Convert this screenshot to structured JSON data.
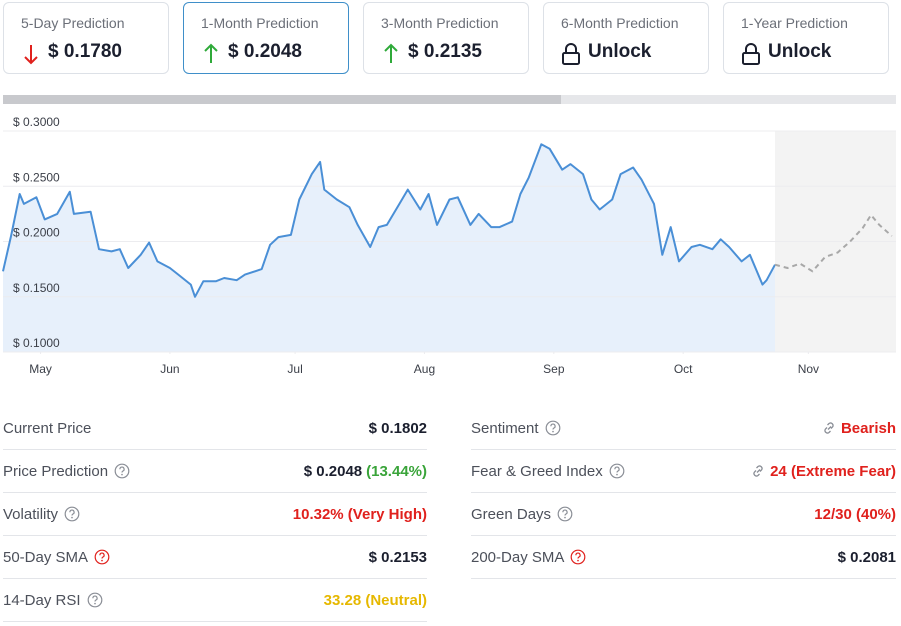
{
  "cards": [
    {
      "label": "5-Day Prediction",
      "value": "$ 0.1780",
      "icon": "down"
    },
    {
      "label": "1-Month Prediction",
      "value": "$ 0.2048",
      "icon": "up",
      "selected": true
    },
    {
      "label": "3-Month Prediction",
      "value": "$ 0.2135",
      "icon": "up"
    },
    {
      "label": "6-Month Prediction",
      "value": "Unlock",
      "icon": "lock"
    },
    {
      "label": "1-Year Prediction",
      "value": "Unlock",
      "icon": "lock"
    }
  ],
  "chart_data": {
    "type": "line",
    "xlim": [
      0,
      214
    ],
    "xticks": [
      {
        "value": 9,
        "label": "May"
      },
      {
        "value": 40,
        "label": "Jun"
      },
      {
        "value": 70,
        "label": "Jul"
      },
      {
        "value": 101,
        "label": "Aug"
      },
      {
        "value": 132,
        "label": "Sep"
      },
      {
        "value": 163,
        "label": "Oct"
      },
      {
        "value": 193,
        "label": "Nov"
      }
    ],
    "ylim": [
      0.1,
      0.3
    ],
    "yticks": [
      {
        "value": 0.1,
        "label": "$ 0.1000"
      },
      {
        "value": 0.15,
        "label": "$ 0.1500"
      },
      {
        "value": 0.2,
        "label": "$ 0.2000"
      },
      {
        "value": 0.25,
        "label": "$ 0.2500"
      },
      {
        "value": 0.3,
        "label": "$ 0.3000"
      }
    ],
    "grid": true,
    "series": [
      {
        "color": "#4a8fd6",
        "style": "solid",
        "area": "#e7f0fb",
        "x": [
          0,
          2,
          4,
          5,
          8,
          10,
          13,
          16,
          17,
          21,
          23,
          26,
          28,
          30,
          33,
          35,
          37,
          40,
          42,
          45,
          46,
          48,
          51,
          53,
          56,
          58,
          62,
          64,
          66,
          69,
          71,
          74,
          76,
          77,
          80,
          83,
          85,
          88,
          90,
          92,
          95,
          97,
          100,
          102,
          104,
          107,
          109,
          112,
          114,
          117,
          119,
          122,
          124,
          126,
          129,
          131,
          134,
          136,
          139,
          141,
          143,
          146,
          148,
          151,
          153,
          156,
          158,
          160,
          162,
          165,
          167,
          170,
          172,
          174,
          177,
          179,
          182,
          183,
          185
        ],
        "values": [
          0.173,
          0.206,
          0.243,
          0.234,
          0.24,
          0.22,
          0.225,
          0.245,
          0.225,
          0.227,
          0.193,
          0.191,
          0.193,
          0.176,
          0.188,
          0.199,
          0.182,
          0.176,
          0.17,
          0.161,
          0.15,
          0.164,
          0.164,
          0.167,
          0.165,
          0.17,
          0.175,
          0.197,
          0.204,
          0.206,
          0.238,
          0.261,
          0.272,
          0.247,
          0.238,
          0.231,
          0.215,
          0.195,
          0.213,
          0.215,
          0.234,
          0.247,
          0.229,
          0.243,
          0.215,
          0.238,
          0.24,
          0.215,
          0.225,
          0.213,
          0.213,
          0.218,
          0.243,
          0.258,
          0.288,
          0.284,
          0.265,
          0.27,
          0.261,
          0.238,
          0.229,
          0.238,
          0.261,
          0.267,
          0.256,
          0.234,
          0.188,
          0.213,
          0.182,
          0.195,
          0.197,
          0.193,
          0.202,
          0.195,
          0.182,
          0.188,
          0.161,
          0.165,
          0.179
        ]
      },
      {
        "color": "#a8a8a8",
        "style": "dashed",
        "area": "#f3f3f3",
        "x": [
          185,
          188,
          191,
          194,
          197,
          200,
          203,
          206,
          208,
          210,
          213
        ],
        "values": [
          0.179,
          0.176,
          0.18,
          0.173,
          0.186,
          0.19,
          0.2,
          0.212,
          0.224,
          0.215,
          0.205
        ]
      }
    ]
  },
  "stats": {
    "left": [
      {
        "label": "Current Price",
        "value": "$ 0.1802"
      },
      {
        "label": "Price Prediction",
        "help": "#8a8e96",
        "value": "$ 0.2048",
        "note": "(13.44%)",
        "note_color": "#3aa43a"
      },
      {
        "label": "Volatility",
        "help": "#8a8e96",
        "value": "10.32% (Very High)",
        "color": "#e0211d"
      },
      {
        "label": "50-Day SMA",
        "help": "#e0211d",
        "value": "$ 0.2153"
      },
      {
        "label": "14-Day RSI",
        "help": "#8a8e96",
        "value": "33.28 (Neutral)",
        "color": "#e6b800"
      }
    ],
    "right": [
      {
        "label": "Sentiment",
        "help": "#8a8e96",
        "value": "Bearish",
        "color": "#e0211d",
        "link": true
      },
      {
        "label": "Fear & Greed Index",
        "help": "#8a8e96",
        "value": "24 (Extreme Fear)",
        "color": "#e0211d",
        "link": true
      },
      {
        "label": "Green Days",
        "help": "#8a8e96",
        "value": "12/30 (40%)",
        "color": "#e0211d"
      },
      {
        "label": "200-Day SMA",
        "help": "#e0211d",
        "value": "$ 0.2081"
      }
    ]
  }
}
